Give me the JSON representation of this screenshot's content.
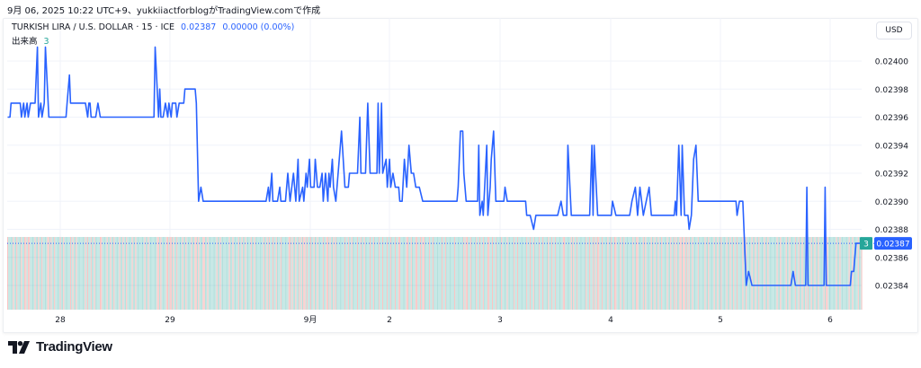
{
  "header": {
    "caption": "9月 06, 2025 10:22 UTC+9、yukkiiactforblogがTradingView.comで作成"
  },
  "legend": {
    "symbol": "TURKISH LIRA / U.S. DOLLAR · 15 · ICE",
    "last": "0.02387",
    "change": "0.00000 (0.00%)",
    "volume_label": "出来高",
    "volume_value": "3"
  },
  "currency_button": "USD",
  "footer": {
    "brand": "TradingView",
    "logo_icon": "tradingview-logo-icon"
  },
  "colors": {
    "line": "#2962ff",
    "vol_up": "#26a69a",
    "vol_down": "#ef5350",
    "grid": "#f0f3fa",
    "price_tag": "#2962ff",
    "vol_tag": "#26a69a"
  },
  "chart_data": {
    "type": "line",
    "interval": "15",
    "ylim": [
      0.02383,
      0.02401
    ],
    "y_ticks": [
      "0.02400",
      "0.02398",
      "0.02396",
      "0.02394",
      "0.02392",
      "0.02390",
      "0.02388",
      "0.02386",
      "0.02384"
    ],
    "x_ticks": [
      "28",
      "29",
      "9月",
      "2",
      "3",
      "4",
      "5",
      "6"
    ],
    "last_price": "0.02387",
    "last_volume": "3",
    "grid": true,
    "series": [
      {
        "points": [
          [
            "08-27 12:30",
            0.02396
          ],
          [
            "08-27 13:00",
            0.02396
          ],
          [
            "08-27 13:15",
            0.02397
          ],
          [
            "08-27 15:15",
            0.02397
          ],
          [
            "08-27 15:30",
            0.02396
          ],
          [
            "08-27 16:00",
            0.02397
          ],
          [
            "08-27 16:15",
            0.02396
          ],
          [
            "08-27 16:45",
            0.02397
          ],
          [
            "08-27 17:00",
            0.02396
          ],
          [
            "08-27 17:30",
            0.02397
          ],
          [
            "08-27 18:30",
            0.02397
          ],
          [
            "08-27 19:00",
            0.02401
          ],
          [
            "08-27 19:15",
            0.02396
          ],
          [
            "08-27 19:45",
            0.02397
          ],
          [
            "08-27 20:00",
            0.02396
          ],
          [
            "08-27 20:30",
            0.02397
          ],
          [
            "08-27 20:45",
            0.02401
          ],
          [
            "08-27 21:30",
            0.02396
          ],
          [
            "08-28 01:15",
            0.02396
          ],
          [
            "08-28 01:30",
            0.02397
          ],
          [
            "08-28 02:00",
            0.02399
          ],
          [
            "08-28 02:15",
            0.02397
          ],
          [
            "08-28 05:30",
            0.02397
          ],
          [
            "08-28 06:00",
            0.02396
          ],
          [
            "08-28 06:15",
            0.02397
          ],
          [
            "08-28 06:30",
            0.02397
          ],
          [
            "08-28 06:45",
            0.02396
          ],
          [
            "08-28 07:45",
            0.02396
          ],
          [
            "08-28 08:15",
            0.02397
          ],
          [
            "08-28 08:45",
            0.02396
          ],
          [
            "08-28 20:30",
            0.02396
          ],
          [
            "08-28 20:45",
            0.02401
          ],
          [
            "08-28 21:30",
            0.02396
          ],
          [
            "08-28 21:45",
            0.02398
          ],
          [
            "08-28 22:00",
            0.02396
          ],
          [
            "08-28 22:30",
            0.02396
          ],
          [
            "08-28 23:00",
            0.02397
          ],
          [
            "08-28 23:30",
            0.02396
          ],
          [
            "08-28 23:45",
            0.02397
          ],
          [
            "08-29 00:15",
            0.02396
          ],
          [
            "08-29 00:30",
            0.02397
          ],
          [
            "08-29 01:15",
            0.02397
          ],
          [
            "08-29 01:30",
            0.02396
          ],
          [
            "08-29 02:00",
            0.02397
          ],
          [
            "08-29 03:00",
            0.02397
          ],
          [
            "08-29 03:15",
            0.02398
          ],
          [
            "08-29 05:30",
            0.02398
          ],
          [
            "08-29 05:45",
            0.02397
          ],
          [
            "08-29 06:15",
            0.0239
          ],
          [
            "08-29 06:45",
            0.02391
          ],
          [
            "08-29 07:15",
            0.0239
          ],
          [
            "08-29 21:00",
            0.0239
          ],
          [
            "08-29 21:30",
            0.02391
          ],
          [
            "08-29 21:45",
            0.0239
          ],
          [
            "08-29 22:15",
            0.02392
          ],
          [
            "08-29 22:30",
            0.0239
          ],
          [
            "08-29 23:30",
            0.0239
          ],
          [
            "08-30 00:00",
            0.02391
          ],
          [
            "08-30 00:15",
            0.0239
          ],
          [
            "08-30 01:15",
            0.0239
          ],
          [
            "08-30 01:45",
            0.02392
          ],
          [
            "08-30 02:15",
            0.0239
          ],
          [
            "08-30 03:00",
            0.02392
          ],
          [
            "08-30 03:30",
            0.0239
          ],
          [
            "08-30 04:00",
            0.02393
          ],
          [
            "08-30 04:15",
            0.0239
          ],
          [
            "08-30 05:00",
            0.02391
          ],
          [
            "08-30 05:15",
            0.0239
          ],
          [
            "08-30 05:45",
            0.02392
          ],
          [
            "09-01 06:00",
            0.02391
          ],
          [
            "09-01 06:30",
            0.02393
          ],
          [
            "09-01 06:45",
            0.02391
          ],
          [
            "09-01 07:30",
            0.02391
          ],
          [
            "09-01 07:45",
            0.02393
          ],
          [
            "09-01 08:15",
            0.02391
          ],
          [
            "09-01 08:45",
            0.02391
          ],
          [
            "09-01 09:15",
            0.02392
          ],
          [
            "09-01 09:30",
            0.0239
          ],
          [
            "09-01 10:00",
            0.02392
          ],
          [
            "09-01 10:30",
            0.0239
          ],
          [
            "09-01 10:45",
            0.02392
          ],
          [
            "09-01 11:00",
            0.02391
          ],
          [
            "09-01 11:30",
            0.02393
          ],
          [
            "09-01 11:45",
            0.02391
          ],
          [
            "09-01 12:15",
            0.0239
          ],
          [
            "09-01 13:00",
            0.02393
          ],
          [
            "09-01 13:30",
            0.02395
          ],
          [
            "09-01 14:15",
            0.02391
          ],
          [
            "09-01 15:00",
            0.02391
          ],
          [
            "09-01 15:15",
            0.02392
          ],
          [
            "09-01 17:00",
            0.02392
          ],
          [
            "09-01 17:30",
            0.02396
          ],
          [
            "09-01 17:45",
            0.02392
          ],
          [
            "09-01 18:45",
            0.02392
          ],
          [
            "09-01 19:15",
            0.02397
          ],
          [
            "09-01 19:45",
            0.02392
          ],
          [
            "09-01 21:15",
            0.02392
          ],
          [
            "09-01 21:30",
            0.02397
          ],
          [
            "09-01 21:45",
            0.02392
          ],
          [
            "09-01 22:15",
            0.02397
          ],
          [
            "09-01 22:30",
            0.02392
          ],
          [
            "09-01 23:15",
            0.02393
          ],
          [
            "09-01 23:30",
            0.02391
          ],
          [
            "09-02 00:00",
            0.02393
          ],
          [
            "09-02 00:15",
            0.02391
          ],
          [
            "09-02 00:45",
            0.02392
          ],
          [
            "09-02 01:15",
            0.02391
          ],
          [
            "09-02 02:00",
            0.02391
          ],
          [
            "09-02 02:15",
            0.0239
          ],
          [
            "09-02 02:45",
            0.0239
          ],
          [
            "09-02 03:15",
            0.02393
          ],
          [
            "09-02 03:45",
            0.02391
          ],
          [
            "09-02 04:15",
            0.02394
          ],
          [
            "09-02 04:45",
            0.02392
          ],
          [
            "09-02 05:15",
            0.02392
          ],
          [
            "09-02 05:45",
            0.02391
          ],
          [
            "09-02 06:30",
            0.02391
          ],
          [
            "09-02 07:15",
            0.0239
          ],
          [
            "09-02 14:45",
            0.0239
          ],
          [
            "09-02 15:00",
            0.02391
          ],
          [
            "09-02 15:30",
            0.02395
          ],
          [
            "09-02 16:00",
            0.02395
          ],
          [
            "09-02 16:15",
            0.02392
          ],
          [
            "09-02 16:45",
            0.0239
          ],
          [
            "09-02 19:15",
            0.0239
          ],
          [
            "09-02 19:30",
            0.02394
          ],
          [
            "09-02 19:45",
            0.02389
          ],
          [
            "09-02 20:15",
            0.0239
          ],
          [
            "09-02 20:30",
            0.02389
          ],
          [
            "09-02 21:15",
            0.02394
          ],
          [
            "09-02 21:30",
            0.02389
          ],
          [
            "09-02 22:00",
            0.02391
          ],
          [
            "09-02 22:15",
            0.02393
          ],
          [
            "09-02 22:45",
            0.02395
          ],
          [
            "09-02 23:15",
            0.0239
          ],
          [
            "09-03 01:00",
            0.0239
          ],
          [
            "09-03 01:15",
            0.02391
          ],
          [
            "09-03 01:45",
            0.0239
          ],
          [
            "09-03 04:45",
            0.0239
          ],
          [
            "09-03 05:45",
            0.0239
          ],
          [
            "09-03 06:00",
            0.02389
          ],
          [
            "09-03 06:45",
            0.02389
          ],
          [
            "09-03 07:30",
            0.02388
          ],
          [
            "09-03 08:00",
            0.02389
          ],
          [
            "09-03 12:45",
            0.02389
          ],
          [
            "09-03 13:30",
            0.0239
          ],
          [
            "09-03 14:00",
            0.02389
          ],
          [
            "09-03 14:45",
            0.02389
          ],
          [
            "09-03 15:00",
            0.02394
          ],
          [
            "09-03 15:45",
            0.02389
          ],
          [
            "09-03 19:45",
            0.02389
          ],
          [
            "09-03 20:15",
            0.02394
          ],
          [
            "09-03 20:30",
            0.02389
          ],
          [
            "09-03 20:45",
            0.02394
          ],
          [
            "09-03 21:30",
            0.02389
          ],
          [
            "09-04 00:30",
            0.02389
          ],
          [
            "09-04 00:45",
            0.0239
          ],
          [
            "09-04 01:30",
            0.02389
          ],
          [
            "09-04 04:30",
            0.02389
          ],
          [
            "09-04 05:00",
            0.0239
          ],
          [
            "09-04 05:45",
            0.02391
          ],
          [
            "09-04 06:15",
            0.02389
          ],
          [
            "09-04 06:45",
            0.02391
          ],
          [
            "09-04 07:30",
            0.02389
          ],
          [
            "09-04 08:45",
            0.02391
          ],
          [
            "09-04 09:15",
            0.02389
          ],
          [
            "09-04 14:15",
            0.02389
          ],
          [
            "09-04 14:30",
            0.0239
          ],
          [
            "09-04 14:45",
            0.02389
          ],
          [
            "09-04 15:15",
            0.02394
          ],
          [
            "09-04 15:45",
            0.02389
          ],
          [
            "09-04 16:00",
            0.02394
          ],
          [
            "09-04 16:30",
            0.02389
          ],
          [
            "09-04 17:15",
            0.02389
          ],
          [
            "09-04 17:30",
            0.02388
          ],
          [
            "09-04 18:00",
            0.02389
          ],
          [
            "09-04 18:30",
            0.02393
          ],
          [
            "09-04 19:00",
            0.02394
          ],
          [
            "09-04 19:30",
            0.0239
          ],
          [
            "09-05 03:45",
            0.0239
          ],
          [
            "09-05 04:00",
            0.02389
          ],
          [
            "09-05 04:30",
            0.0239
          ],
          [
            "09-05 05:15",
            0.0239
          ],
          [
            "09-05 06:00",
            0.02384
          ],
          [
            "09-05 06:30",
            0.02385
          ],
          [
            "09-05 07:15",
            0.02384
          ],
          [
            "09-05 15:45",
            0.02384
          ],
          [
            "09-05 16:15",
            0.02385
          ],
          [
            "09-05 16:45",
            0.02384
          ],
          [
            "09-05 19:00",
            0.02384
          ],
          [
            "09-05 19:15",
            0.02391
          ],
          [
            "09-05 19:30",
            0.02384
          ],
          [
            "09-05 23:00",
            0.02384
          ],
          [
            "09-05 23:15",
            0.02391
          ],
          [
            "09-05 23:30",
            0.02384
          ],
          [
            "09-06 04:45",
            0.02384
          ],
          [
            "09-06 05:00",
            0.02385
          ],
          [
            "09-06 05:30",
            0.02385
          ],
          [
            "09-06 06:00",
            0.02387
          ],
          [
            "09-06 07:15",
            0.02387
          ]
        ]
      }
    ],
    "volume": {
      "value": 3
    }
  }
}
